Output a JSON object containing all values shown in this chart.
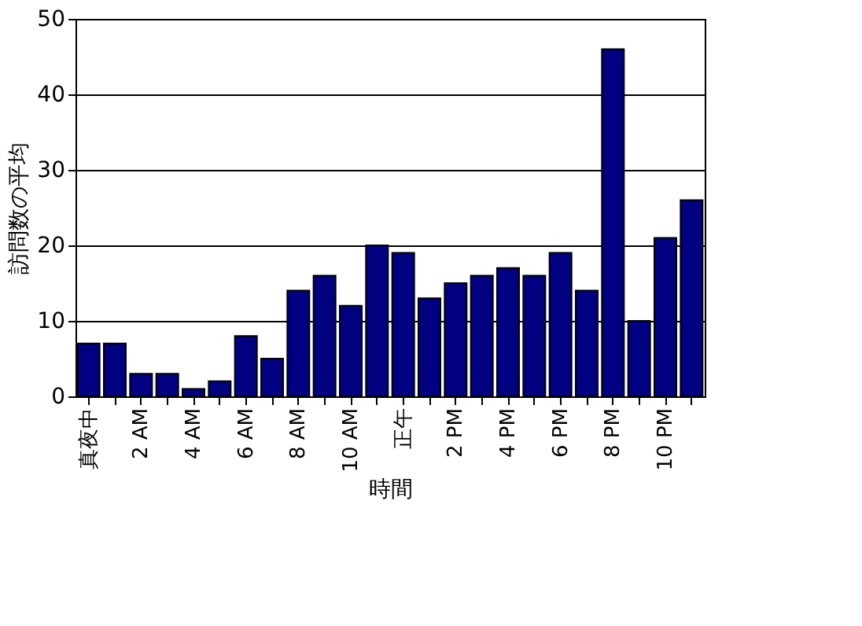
{
  "chart_data": {
    "type": "bar",
    "xlabel": "時間",
    "ylabel": "訪問数の平均",
    "categories": [
      "真夜中",
      null,
      "2 AM",
      null,
      "4 AM",
      null,
      "6 AM",
      null,
      "8 AM",
      null,
      "10 AM",
      null,
      "正午",
      null,
      "2 PM",
      null,
      "4 PM",
      null,
      "6 PM",
      null,
      "8 PM",
      null,
      "10 PM",
      null
    ],
    "values": [
      7,
      7,
      3,
      3,
      1,
      2,
      8,
      5,
      14,
      16,
      12,
      20,
      19,
      13,
      15,
      16,
      17,
      16,
      19,
      14,
      46,
      10,
      21,
      26
    ],
    "color": "#000080",
    "ylim": [
      0,
      50
    ],
    "yticks": [
      0,
      10,
      20,
      30,
      40,
      50
    ],
    "grid": "y"
  }
}
